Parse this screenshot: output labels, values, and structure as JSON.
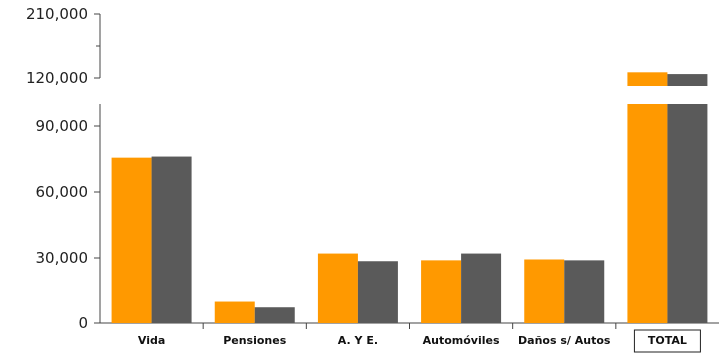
{
  "chart_data": {
    "type": "bar",
    "categories": [
      "Vida",
      "Pensiones",
      "A. Y E.",
      "Automóviles",
      "Daños s/ Autos",
      "TOTAL"
    ],
    "series": [
      {
        "values": [
          75500,
          9800,
          31700,
          28600,
          29000,
          128000
        ],
        "color": "#ff9900"
      },
      {
        "values": [
          76000,
          7200,
          28200,
          31700,
          28600,
          125500
        ],
        "color": "#5a5a5a"
      }
    ],
    "y_ticks_lower": [
      "0",
      "30,000",
      "60,000",
      "90,000"
    ],
    "y_ticks_upper": [
      "120,000",
      "210,000"
    ],
    "ylim_lower": [
      0,
      100000
    ],
    "ylim_upper": [
      105000,
      210000
    ],
    "axis_break": true,
    "grid": false,
    "legend": "none",
    "highlighted_category": "TOTAL"
  }
}
